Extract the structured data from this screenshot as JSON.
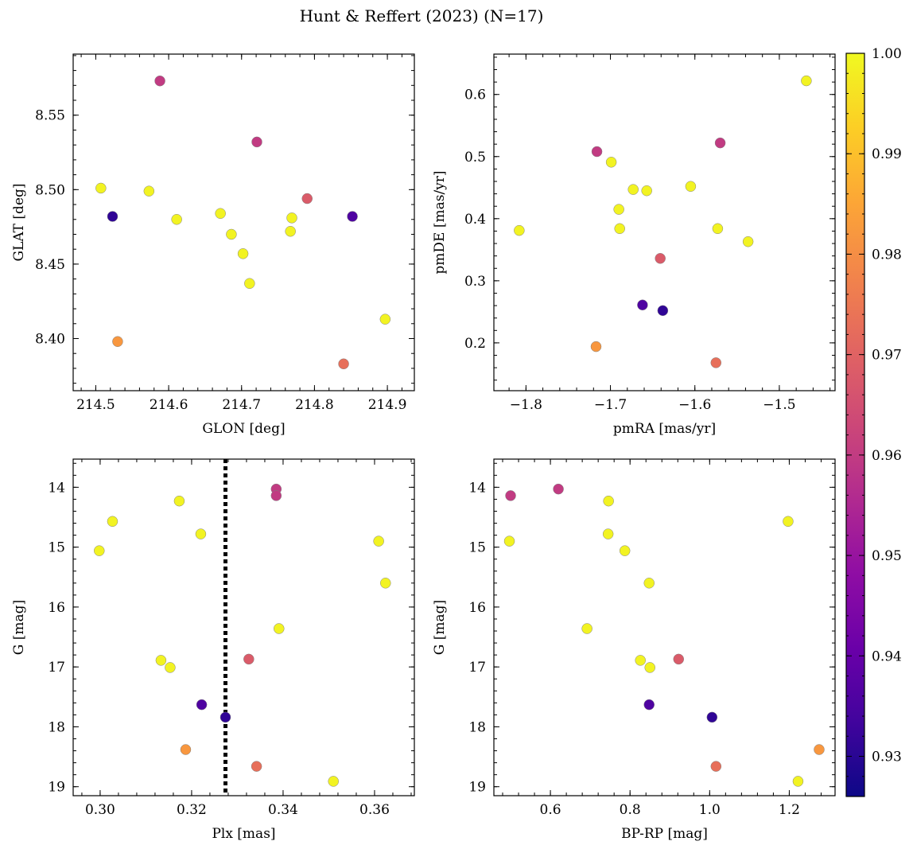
{
  "figure_title": "Hunt & Reffert (2023) (N=17)",
  "colorbar": {
    "range": [
      0.926,
      1.0
    ],
    "ticks": [
      "0.93",
      "0.94",
      "0.95",
      "0.96",
      "0.97",
      "0.98",
      "0.99",
      "1.00"
    ],
    "tick_values": [
      0.93,
      0.94,
      0.95,
      0.96,
      0.97,
      0.98,
      0.99,
      1.0
    ],
    "colormap": "plasma"
  },
  "chart_data": [
    {
      "type": "scatter",
      "xlabel": "GLON [deg]",
      "ylabel": "GLAT [deg]",
      "xlim": [
        214.469,
        214.937
      ],
      "ylim": [
        8.365,
        8.591
      ],
      "xticks": [
        {
          "v": 214.5,
          "t": "214.5"
        },
        {
          "v": 214.6,
          "t": "214.6"
        },
        {
          "v": 214.7,
          "t": "214.7"
        },
        {
          "v": 214.8,
          "t": "214.8"
        },
        {
          "v": 214.9,
          "t": "214.9"
        }
      ],
      "yticks": [
        {
          "v": 8.4,
          "t": "8.40"
        },
        {
          "v": 8.45,
          "t": "8.45"
        },
        {
          "v": 8.5,
          "t": "8.50"
        },
        {
          "v": 8.55,
          "t": "8.55"
        }
      ],
      "x": [
        214.588,
        214.721,
        214.507,
        214.573,
        214.611,
        214.671,
        214.686,
        214.702,
        214.711,
        214.769,
        214.767,
        214.79,
        214.852,
        214.523,
        214.53,
        214.84,
        214.897
      ],
      "y": [
        8.573,
        8.532,
        8.501,
        8.499,
        8.48,
        8.484,
        8.47,
        8.457,
        8.437,
        8.481,
        8.472,
        8.494,
        8.482,
        8.482,
        8.398,
        8.383,
        8.413
      ]
    },
    {
      "type": "scatter",
      "xlabel": "pmRA [mas/yr]",
      "ylabel": "pmDE [mas/yr]",
      "xlim": [
        -1.838,
        -1.434
      ],
      "ylim": [
        0.123,
        0.665
      ],
      "xticks": [
        {
          "v": -1.8,
          "t": "−1.8"
        },
        {
          "v": -1.7,
          "t": "−1.7"
        },
        {
          "v": -1.6,
          "t": "−1.6"
        },
        {
          "v": -1.5,
          "t": "−1.5"
        }
      ],
      "yticks": [
        {
          "v": 0.2,
          "t": "0.2"
        },
        {
          "v": 0.3,
          "t": "0.3"
        },
        {
          "v": 0.4,
          "t": "0.4"
        },
        {
          "v": 0.5,
          "t": "0.5"
        },
        {
          "v": 0.6,
          "t": "0.6"
        }
      ],
      "x": [
        -1.57,
        -1.716,
        -1.699,
        -1.673,
        -1.657,
        -1.605,
        -1.69,
        -1.689,
        -1.808,
        -1.573,
        -1.537,
        -1.641,
        -1.662,
        -1.638,
        -1.717,
        -1.575,
        -1.468
      ],
      "y": [
        0.522,
        0.508,
        0.491,
        0.447,
        0.445,
        0.452,
        0.415,
        0.384,
        0.381,
        0.384,
        0.363,
        0.336,
        0.261,
        0.252,
        0.194,
        0.168,
        0.622
      ]
    },
    {
      "type": "scatter",
      "xlabel": "Plx [mas]",
      "ylabel": "G [mag]",
      "xlim": [
        0.2941,
        0.3687
      ],
      "ylim": [
        19.15,
        13.53
      ],
      "xticks": [
        {
          "v": 0.3,
          "t": "0.30"
        },
        {
          "v": 0.32,
          "t": "0.32"
        },
        {
          "v": 0.34,
          "t": "0.34"
        },
        {
          "v": 0.36,
          "t": "0.36"
        }
      ],
      "yticks": [
        {
          "v": 14,
          "t": "14"
        },
        {
          "v": 15,
          "t": "15"
        },
        {
          "v": 16,
          "t": "16"
        },
        {
          "v": 17,
          "t": "17"
        },
        {
          "v": 18,
          "t": "18"
        },
        {
          "v": 19,
          "t": "19"
        }
      ],
      "vline": 0.3274,
      "x": [
        0.3385,
        0.3385,
        0.3173,
        0.3027,
        0.322,
        0.2998,
        0.3609,
        0.3624,
        0.3391,
        0.3133,
        0.3153,
        0.3325,
        0.3222,
        0.3274,
        0.3187,
        0.3342,
        0.351
      ],
      "y": [
        14.03,
        14.14,
        14.23,
        14.57,
        14.78,
        15.06,
        14.9,
        15.6,
        16.36,
        16.89,
        17.01,
        16.87,
        17.63,
        17.84,
        18.38,
        18.66,
        18.91
      ]
    },
    {
      "type": "scatter",
      "xlabel": "BP-RP [mag]",
      "ylabel": "G [mag]",
      "xlim": [
        0.458,
        1.315
      ],
      "ylim": [
        19.15,
        13.53
      ],
      "xticks": [
        {
          "v": 0.6,
          "t": "0.6"
        },
        {
          "v": 0.8,
          "t": "0.8"
        },
        {
          "v": 1.0,
          "t": "1.0"
        },
        {
          "v": 1.2,
          "t": "1.2"
        }
      ],
      "yticks": [
        {
          "v": 14,
          "t": "14"
        },
        {
          "v": 15,
          "t": "15"
        },
        {
          "v": 16,
          "t": "16"
        },
        {
          "v": 17,
          "t": "17"
        },
        {
          "v": 18,
          "t": "18"
        },
        {
          "v": 19,
          "t": "19"
        }
      ],
      "x": [
        0.62,
        0.5,
        0.746,
        1.197,
        0.745,
        0.787,
        0.497,
        0.848,
        0.692,
        0.826,
        0.85,
        0.922,
        0.848,
        1.006,
        1.275,
        1.016,
        1.222
      ],
      "y": [
        14.03,
        14.14,
        14.23,
        14.57,
        14.78,
        15.06,
        14.9,
        15.6,
        16.36,
        16.89,
        17.01,
        16.87,
        17.63,
        17.84,
        18.38,
        18.66,
        18.91
      ]
    }
  ],
  "membership_probability": [
    0.96,
    0.96,
    0.999,
    0.999,
    0.999,
    0.999,
    0.999,
    0.999,
    0.999,
    0.999,
    0.999,
    0.968,
    0.936,
    0.931,
    0.982,
    0.973,
    0.999
  ]
}
